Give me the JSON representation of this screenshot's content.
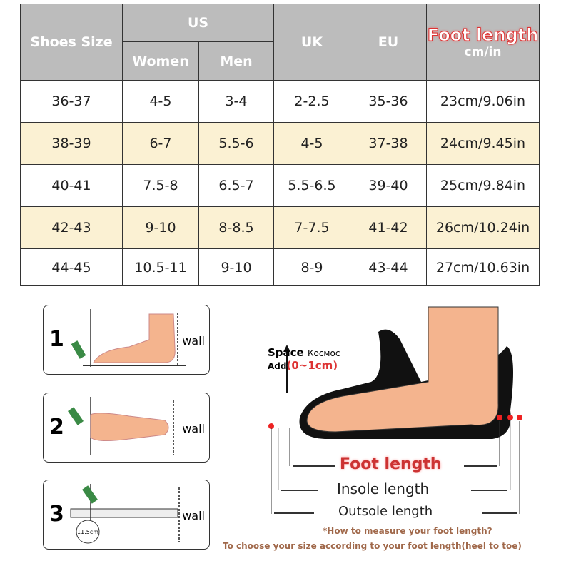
{
  "table": {
    "headers": {
      "size": "Shoes Size",
      "us": "US",
      "women": "Women",
      "men": "Men",
      "uk": "UK",
      "eu": "EU",
      "foot_length": "Foot length",
      "unit": "cm/in"
    },
    "rows": [
      [
        "36-37",
        "4-5",
        "3-4",
        "2-2.5",
        "35-36",
        "23cm/9.06in"
      ],
      [
        "38-39",
        "6-7",
        "5.5-6",
        "4-5",
        "37-38",
        "24cm/9.45in"
      ],
      [
        "40-41",
        "7.5-8",
        "6.5-7",
        "5.5-6.5",
        "39-40",
        "25cm/9.84in"
      ],
      [
        "42-43",
        "9-10",
        "8-8.5",
        "7-7.5",
        "41-42",
        "26cm/10.24in"
      ],
      [
        "44-45",
        "10.5-11",
        "9-10",
        "8-9",
        "43-44",
        "27cm/10.63in"
      ]
    ]
  },
  "steps": [
    {
      "number": "1",
      "wall": "wall"
    },
    {
      "number": "2",
      "wall": "wall"
    },
    {
      "number": "3",
      "wall": "wall",
      "ruler": "11.5cm"
    }
  ],
  "diagram": {
    "space": "Space",
    "space_ru": "Космос",
    "add": "Add",
    "add_value": "(0~1cm)",
    "foot_length": "Foot length",
    "insole_length": "Insole length",
    "outsole_length": "Outsole length",
    "question": "*How to measure your foot length?",
    "note": "To choose your size according to your foot length(heel to toe)"
  },
  "colors": {
    "header": "#bcbcbc",
    "stripe": "#fbf1d3",
    "accent": "#d33333",
    "skin": "#f4b48e"
  }
}
